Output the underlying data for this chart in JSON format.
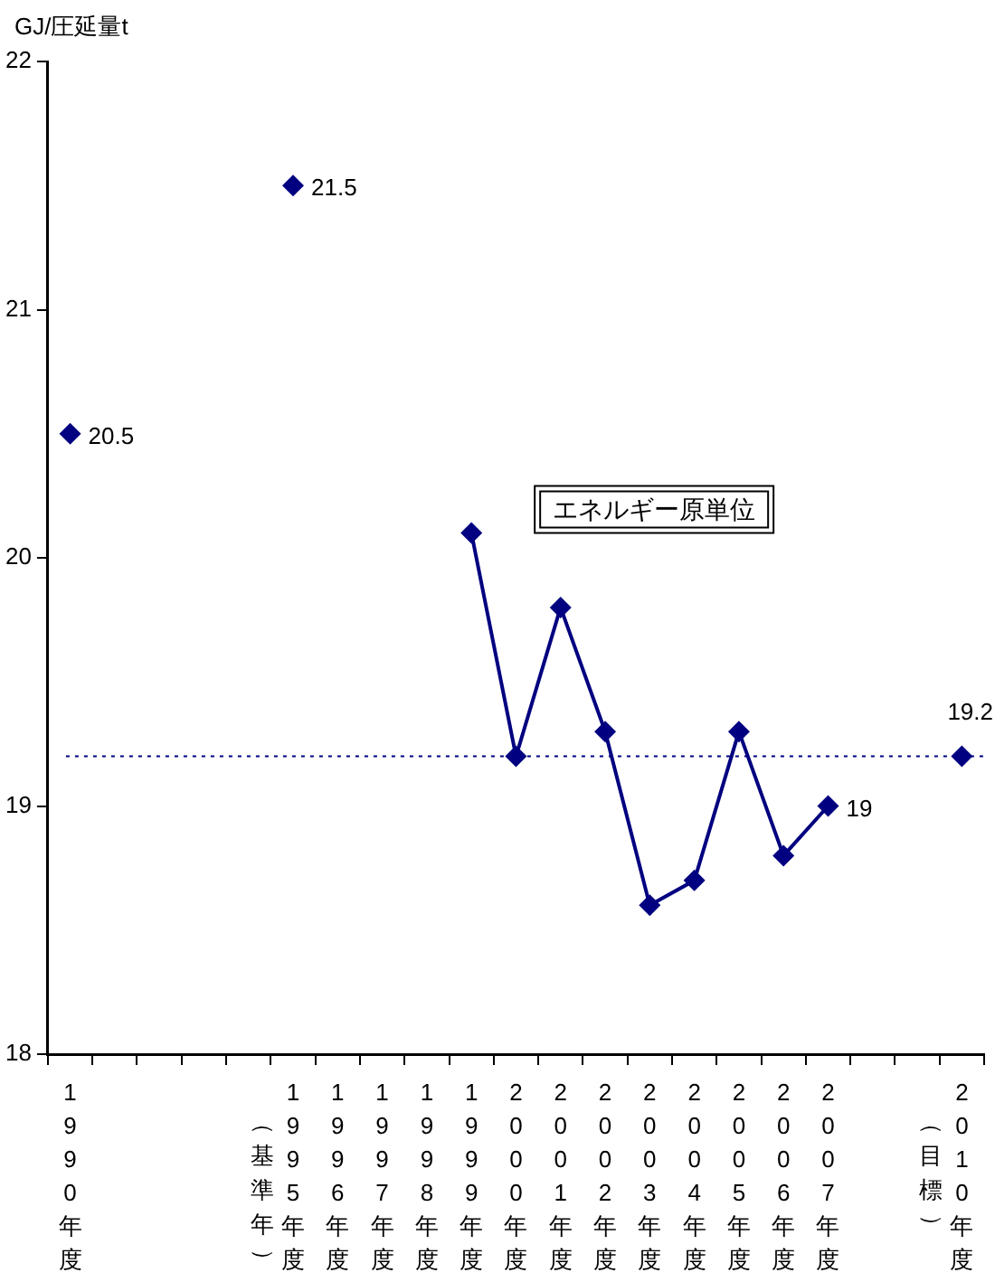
{
  "chart_data": {
    "type": "line",
    "ylabel": "GJ/圧延量t",
    "categories": [
      "1990年度",
      null,
      null,
      null,
      null,
      "1995年度",
      "1996年度",
      "1997年度",
      "1998年度",
      "1999年度",
      "2000年度",
      "2001年度",
      "2002年度",
      "2003年度",
      "2004年度",
      "2005年度",
      "2006年度",
      "2007年度",
      null,
      null,
      "2010年度"
    ],
    "annotations": [
      "（基準年）",
      "（目標）"
    ],
    "series": [
      {
        "name": "エネルギー原単位",
        "color": "#000080",
        "values": [
          20.5,
          null,
          null,
          null,
          null,
          21.5,
          null,
          null,
          null,
          20.1,
          19.2,
          19.8,
          19.3,
          18.6,
          18.7,
          19.3,
          18.8,
          19.0,
          null,
          null,
          19.2
        ],
        "value_labels": [
          "20.5",
          null,
          null,
          null,
          null,
          "21.5",
          null,
          null,
          null,
          null,
          null,
          null,
          null,
          null,
          null,
          null,
          null,
          "19",
          null,
          null,
          "19.2"
        ]
      }
    ],
    "ylim": [
      18,
      22
    ],
    "yticks": [
      18,
      19,
      20,
      21,
      22
    ],
    "grid": false,
    "legend": false,
    "marker": "diamond",
    "line_style": "solid",
    "ref_lines": [
      {
        "axis": "y",
        "value": 19.2,
        "color": "#000080",
        "line_style": "dotted"
      }
    ]
  }
}
